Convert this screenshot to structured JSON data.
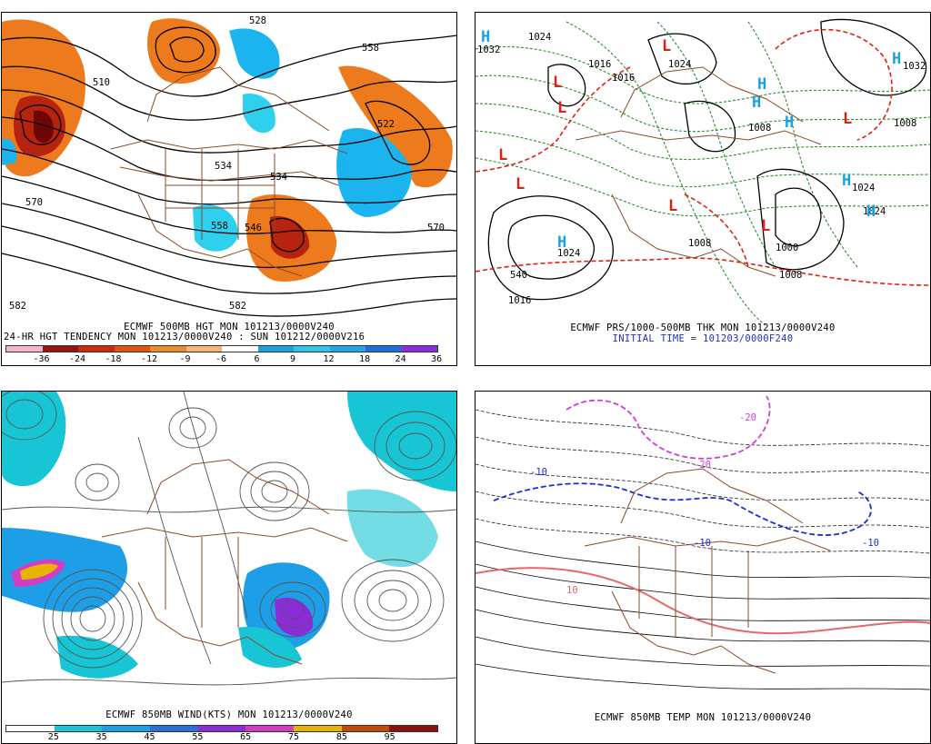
{
  "panels": {
    "p1": {
      "caption_main": "ECMWF 500MB HGT MON 101213/0000V240",
      "caption_sub": "24-HR HGT TENDENCY MON 101213/0000V240 : SUN 101212/0000V216",
      "contour_labels": [
        "510",
        "528",
        "558",
        "522",
        "534",
        "534",
        "558",
        "546",
        "570",
        "570",
        "582",
        "582"
      ],
      "legend_ticks": [
        "-36",
        "-24",
        "-18",
        "-12",
        "-9",
        "-6",
        "6",
        "9",
        "12",
        "18",
        "24",
        "36"
      ],
      "legend_colors": [
        "#f7b6c8",
        "#9c1212",
        "#cc2a08",
        "#e4520c",
        "#ef8a28",
        "#f6b572",
        "#ffffff",
        "#16a3e6",
        "#2cc6ee",
        "#1da8f0",
        "#1a72d8",
        "#8a2be2"
      ]
    },
    "p2": {
      "caption_main": "ECMWF PRS/1000-500MB THK MON 101213/0000V240",
      "caption_sub": "INITIAL TIME = 101203/0000F240",
      "labels": [
        "1032",
        "1024",
        "1016",
        "1024",
        "1016",
        "1024",
        "1008",
        "1008",
        "1000",
        "1032",
        "1024",
        "1024",
        "540",
        "1016",
        "1008",
        "1008"
      ],
      "highs": [
        "H",
        "H",
        "H",
        "H",
        "H",
        "H",
        "H",
        "H"
      ],
      "lows": [
        "L",
        "L",
        "L",
        "L",
        "L",
        "L",
        "L",
        "L"
      ]
    },
    "p3": {
      "caption_main": "ECMWF 850MB WIND(KTS) MON 101213/0000V240",
      "legend_ticks": [
        "25",
        "35",
        "45",
        "55",
        "65",
        "75",
        "85",
        "95"
      ],
      "legend_colors": [
        "#ffffff",
        "#17c5d4",
        "#1e9ee6",
        "#2d6fd8",
        "#8c2bd8",
        "#d43cc4",
        "#e8b400",
        "#c44a0c",
        "#8b1010"
      ]
    },
    "p4": {
      "caption_main": "ECMWF 850MB TEMP MON 101213/0000V240",
      "labels": [
        "-10",
        "-20",
        "-20",
        "-10",
        "-10",
        "10"
      ]
    }
  },
  "colors": {
    "positive_tendency": "#1cb4ee",
    "negative_tendency": "#ee7a1e",
    "strong_negative": "#9c1212",
    "isobar_low": "#e02010",
    "isobar_high": "#1a9fe0",
    "thickness": "#2e8b2e",
    "borders": "#8b4a2b",
    "zero_isotherm_blue": "#1a2fd6",
    "minus20_magenta": "#d23cd8",
    "plus_isotherm": "#e46a6a"
  }
}
